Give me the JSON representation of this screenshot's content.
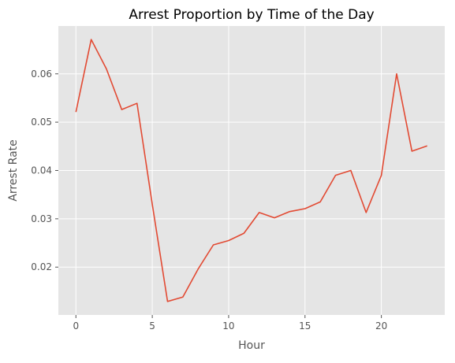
{
  "chart_data": {
    "type": "line",
    "title": "Arrest Proportion by Time of the Day",
    "xlabel": "Hour",
    "ylabel": "Arrest Rate",
    "x": [
      0,
      1,
      2,
      3,
      4,
      5,
      6,
      7,
      8,
      9,
      10,
      11,
      12,
      13,
      14,
      15,
      16,
      17,
      18,
      19,
      20,
      21,
      22,
      23
    ],
    "series": [
      {
        "values": [
          0.0521,
          0.0671,
          0.061,
          0.0526,
          0.0539,
          0.033,
          0.0129,
          0.0138,
          0.0196,
          0.0246,
          0.0255,
          0.027,
          0.0313,
          0.0302,
          0.0315,
          0.0321,
          0.0335,
          0.039,
          0.04,
          0.0313,
          0.039,
          0.06,
          0.044,
          0.0451
        ],
        "color": "#E24A33"
      }
    ],
    "xlim": [
      -1.15,
      24.15
    ],
    "ylim": [
      0.0101,
      0.0699
    ],
    "xticks": [
      0,
      5,
      10,
      15,
      20
    ],
    "yticks": [
      0.02,
      0.03,
      0.04,
      0.05,
      0.06
    ],
    "xtick_labels": [
      "0",
      "5",
      "10",
      "15",
      "20"
    ],
    "ytick_labels": [
      "0.02",
      "0.03",
      "0.04",
      "0.05",
      "0.06"
    ],
    "grid": true,
    "background": "#E5E5E5"
  }
}
